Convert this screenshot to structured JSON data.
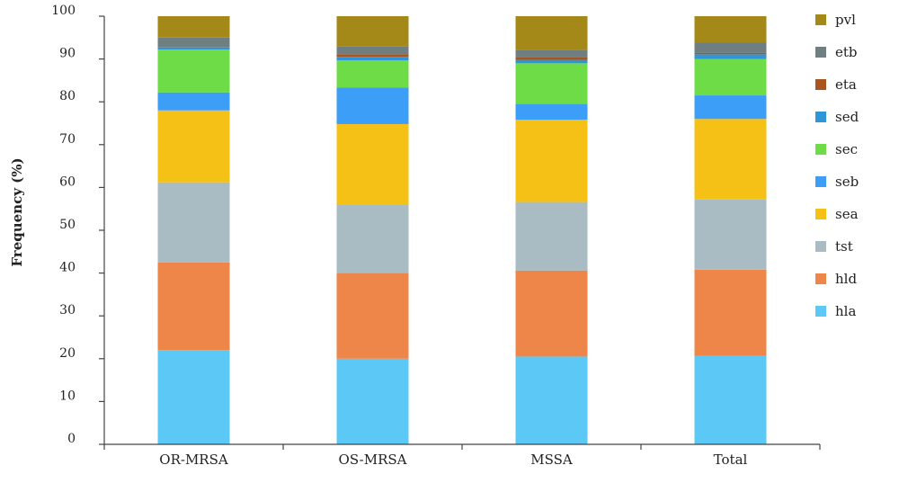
{
  "chart_data": {
    "type": "bar",
    "stacked": true,
    "title": "",
    "xlabel": "",
    "ylabel": "Frequency (%)",
    "ylim": [
      0,
      100
    ],
    "yticks": [
      0,
      10,
      20,
      30,
      40,
      50,
      60,
      70,
      80,
      90,
      100
    ],
    "categories": [
      "OR-MRSA",
      "OS-MRSA",
      "MSSA",
      "Total"
    ],
    "legend_position": "right",
    "series": [
      {
        "name": "hla",
        "color": "#5BC8F5",
        "values": [
          22.0,
          20.0,
          20.5,
          20.7
        ]
      },
      {
        "name": "hld",
        "color": "#ED8648",
        "values": [
          20.5,
          20.0,
          20.1,
          20.1
        ]
      },
      {
        "name": "tst",
        "color": "#A9BBC3",
        "values": [
          18.7,
          16.0,
          16.0,
          16.4
        ]
      },
      {
        "name": "sea",
        "color": "#F6C116",
        "values": [
          16.8,
          18.8,
          19.2,
          18.8
        ]
      },
      {
        "name": "seb",
        "color": "#3C9EF6",
        "values": [
          4.2,
          8.5,
          3.7,
          5.5
        ]
      },
      {
        "name": "sec",
        "color": "#6EDC46",
        "values": [
          10.0,
          6.4,
          9.5,
          8.5
        ]
      },
      {
        "name": "sed",
        "color": "#2E96D8",
        "values": [
          0.5,
          0.8,
          0.8,
          1.1
        ]
      },
      {
        "name": "eta",
        "color": "#A8561F",
        "values": [
          0.0,
          0.6,
          0.7,
          0.3
        ]
      },
      {
        "name": "etb",
        "color": "#6F7F81",
        "values": [
          2.3,
          1.9,
          1.6,
          2.4
        ]
      },
      {
        "name": "pvl",
        "color": "#A48919",
        "values": [
          5.0,
          7.0,
          7.9,
          6.2
        ]
      }
    ]
  }
}
